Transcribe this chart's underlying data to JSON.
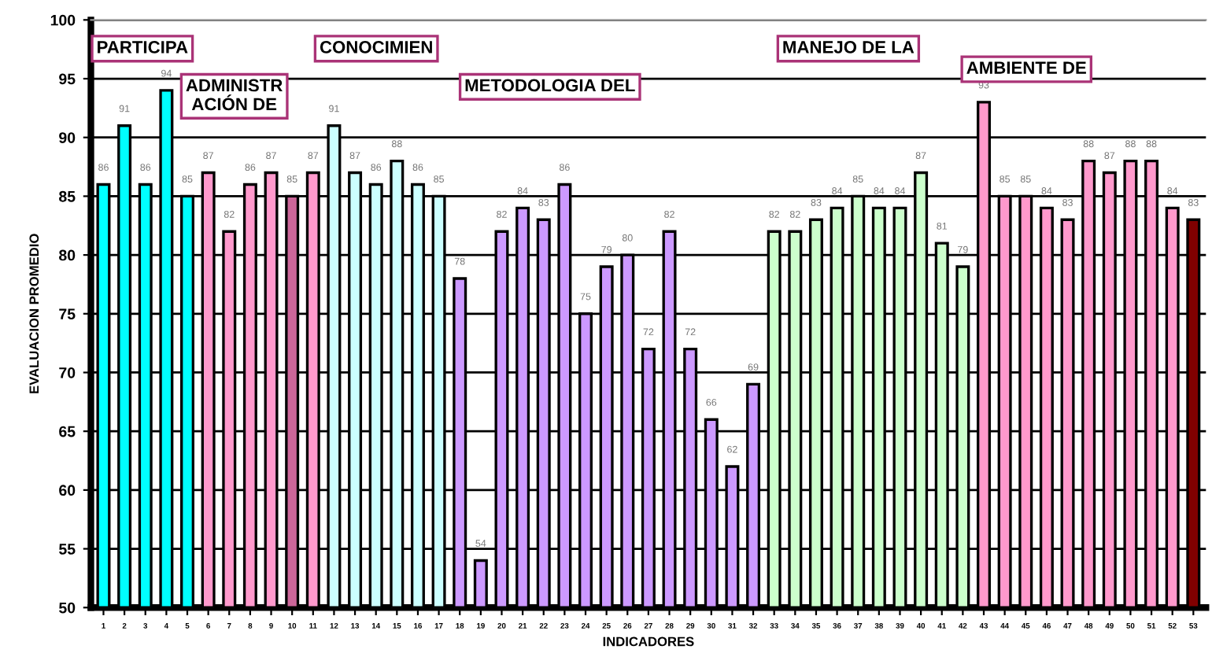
{
  "chart_data": {
    "type": "bar",
    "xlabel": "INDICADORES",
    "ylabel": "EVALUACION PROMEDIO",
    "categories": [
      "1",
      "2",
      "3",
      "4",
      "5",
      "6",
      "7",
      "8",
      "9",
      "10",
      "11",
      "12",
      "13",
      "14",
      "15",
      "16",
      "17",
      "18",
      "19",
      "20",
      "21",
      "22",
      "23",
      "24",
      "25",
      "26",
      "27",
      "28",
      "29",
      "30",
      "31",
      "32",
      "33",
      "34",
      "35",
      "36",
      "37",
      "38",
      "39",
      "40",
      "41",
      "42",
      "43",
      "44",
      "45",
      "46",
      "47",
      "48",
      "49",
      "50",
      "51",
      "52",
      "53"
    ],
    "values": [
      86,
      91,
      86,
      94,
      85,
      87,
      82,
      86,
      87,
      85,
      87,
      91,
      87,
      86,
      88,
      86,
      85,
      78,
      54,
      82,
      84,
      83,
      86,
      75,
      79,
      80,
      72,
      82,
      72,
      66,
      62,
      69,
      82,
      82,
      83,
      84,
      85,
      84,
      84,
      87,
      81,
      79,
      93,
      85,
      85,
      84,
      83,
      88,
      87,
      88,
      88,
      84,
      83
    ],
    "colors": [
      "#00ffff",
      "#00ffff",
      "#00ffff",
      "#00ffff",
      "#00ffff",
      "#ff99cc",
      "#ff99cc",
      "#ff99cc",
      "#ff99cc",
      "#cc6699",
      "#ff99cc",
      "#ccffff",
      "#ccffff",
      "#ccffff",
      "#ccffff",
      "#ccffff",
      "#ccffff",
      "#cc99ff",
      "#cc99ff",
      "#cc99ff",
      "#cc99ff",
      "#cc99ff",
      "#cc99ff",
      "#cc99ff",
      "#cc99ff",
      "#cc99ff",
      "#cc99ff",
      "#cc99ff",
      "#cc99ff",
      "#cc99ff",
      "#cc99ff",
      "#cc99ff",
      "#ccffcc",
      "#ccffcc",
      "#ccffcc",
      "#ccffcc",
      "#ccffcc",
      "#ccffcc",
      "#ccffcc",
      "#ccffcc",
      "#ccffcc",
      "#ccffcc",
      "#ff99cc",
      "#ff99cc",
      "#ff99cc",
      "#ff99cc",
      "#ff99cc",
      "#ff99cc",
      "#ff99cc",
      "#ff99cc",
      "#ff99cc",
      "#ff99cc",
      "#800000"
    ],
    "ylim": [
      50,
      100
    ],
    "yticks": [
      50,
      55,
      60,
      65,
      70,
      75,
      80,
      85,
      90,
      95,
      100
    ],
    "grid": "y",
    "data_labels": true,
    "annotations": [
      "PARTICIPA",
      "ADMINISTR\nACIÓN DE",
      "CONOCIMIEN",
      "METODOLOGIA DEL",
      "MANEJO DE LA",
      "AMBIENTE DE"
    ]
  }
}
